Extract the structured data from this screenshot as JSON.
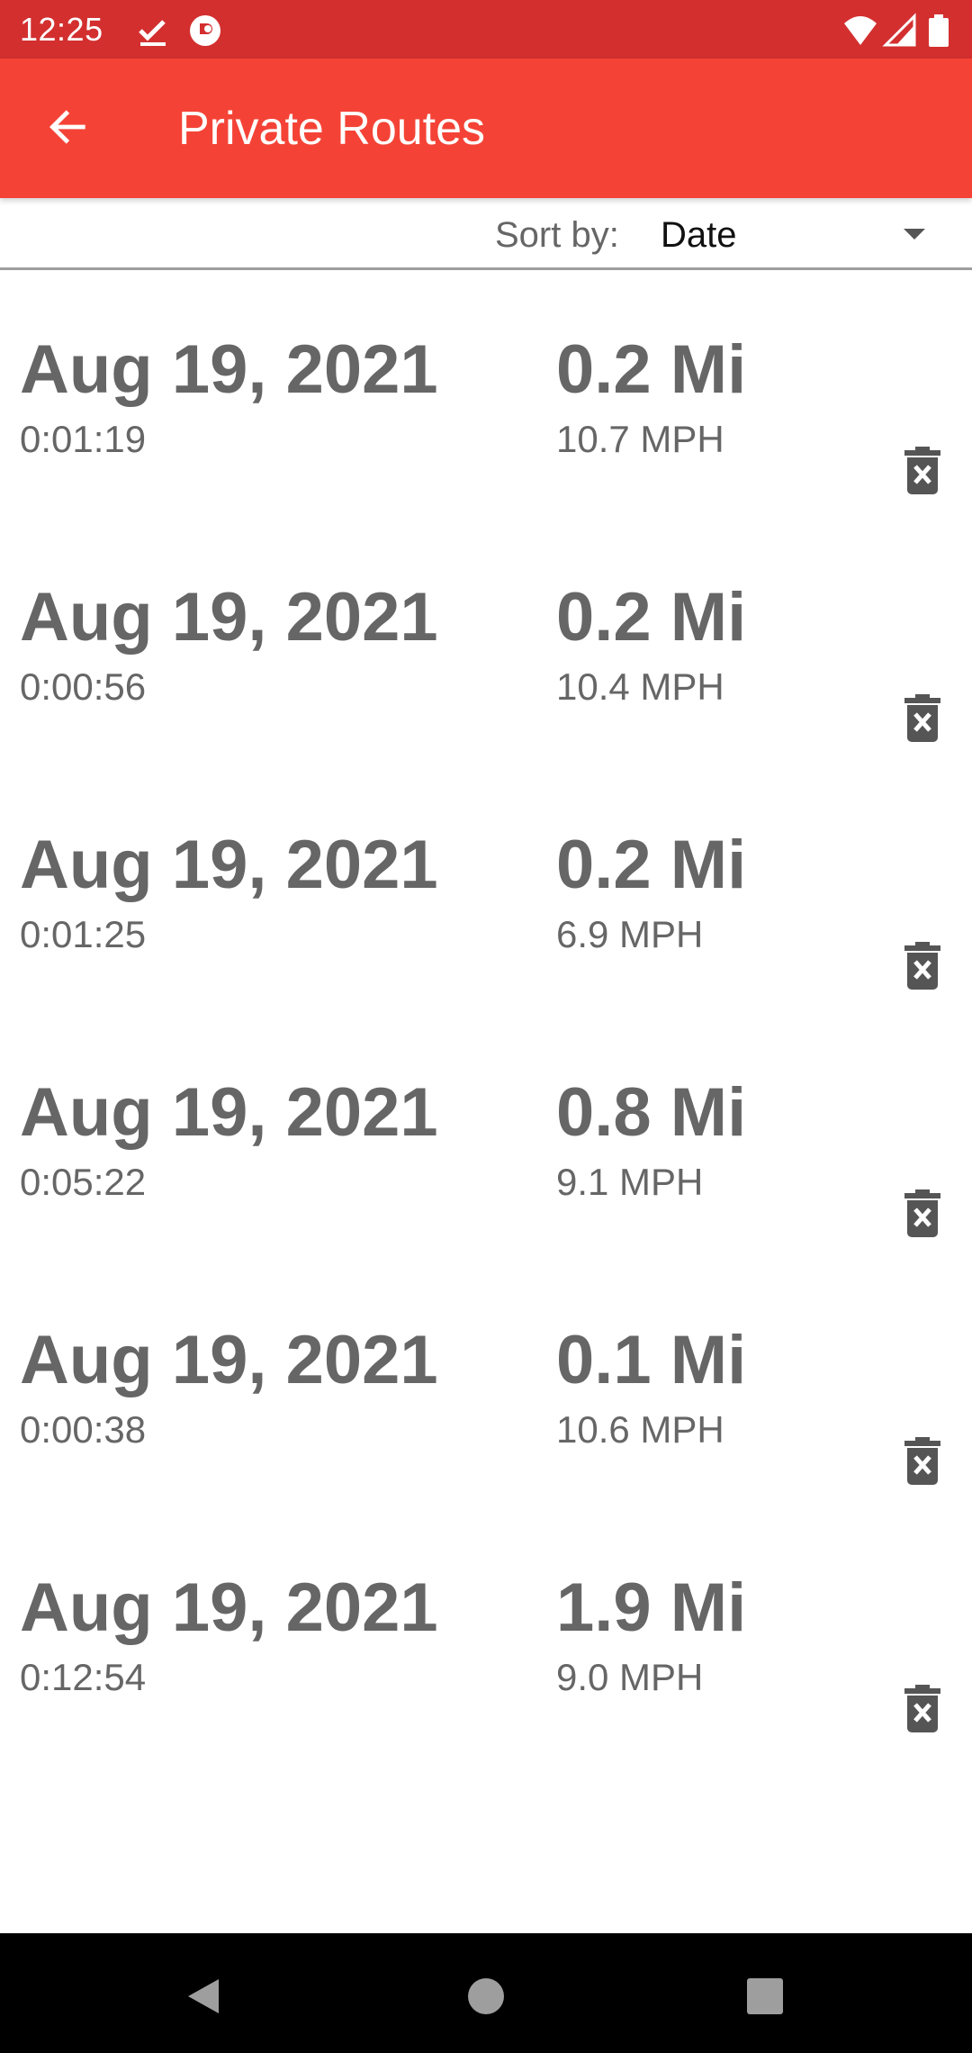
{
  "status_bar": {
    "time": "12:25",
    "icons": [
      "checkmark-download-icon",
      "circle-app-icon",
      "wifi-icon",
      "cellular-signal-icon",
      "battery-icon"
    ]
  },
  "app_bar": {
    "title": "Private Routes",
    "back_icon": "arrow-back-icon",
    "background_color": "#f44336",
    "status_color": "#d32f2f"
  },
  "sort": {
    "label": "Sort by:",
    "selected": "Date"
  },
  "routes": [
    {
      "date": "Aug 19, 2021",
      "duration": "0:01:19",
      "distance": "0.2 Mi",
      "speed": "10.7 MPH"
    },
    {
      "date": "Aug 19, 2021",
      "duration": "0:00:56",
      "distance": "0.2 Mi",
      "speed": "10.4 MPH"
    },
    {
      "date": "Aug 19, 2021",
      "duration": "0:01:25",
      "distance": "0.2 Mi",
      "speed": "6.9 MPH"
    },
    {
      "date": "Aug 19, 2021",
      "duration": "0:05:22",
      "distance": "0.8 Mi",
      "speed": "9.1 MPH"
    },
    {
      "date": "Aug 19, 2021",
      "duration": "0:00:38",
      "distance": "0.1 Mi",
      "speed": "10.6 MPH"
    },
    {
      "date": "Aug 19, 2021",
      "duration": "0:12:54",
      "distance": "1.9 Mi",
      "speed": "9.0 MPH"
    }
  ],
  "nav_bar": {
    "buttons": [
      "back-triangle-icon",
      "home-circle-icon",
      "recents-square-icon"
    ]
  }
}
